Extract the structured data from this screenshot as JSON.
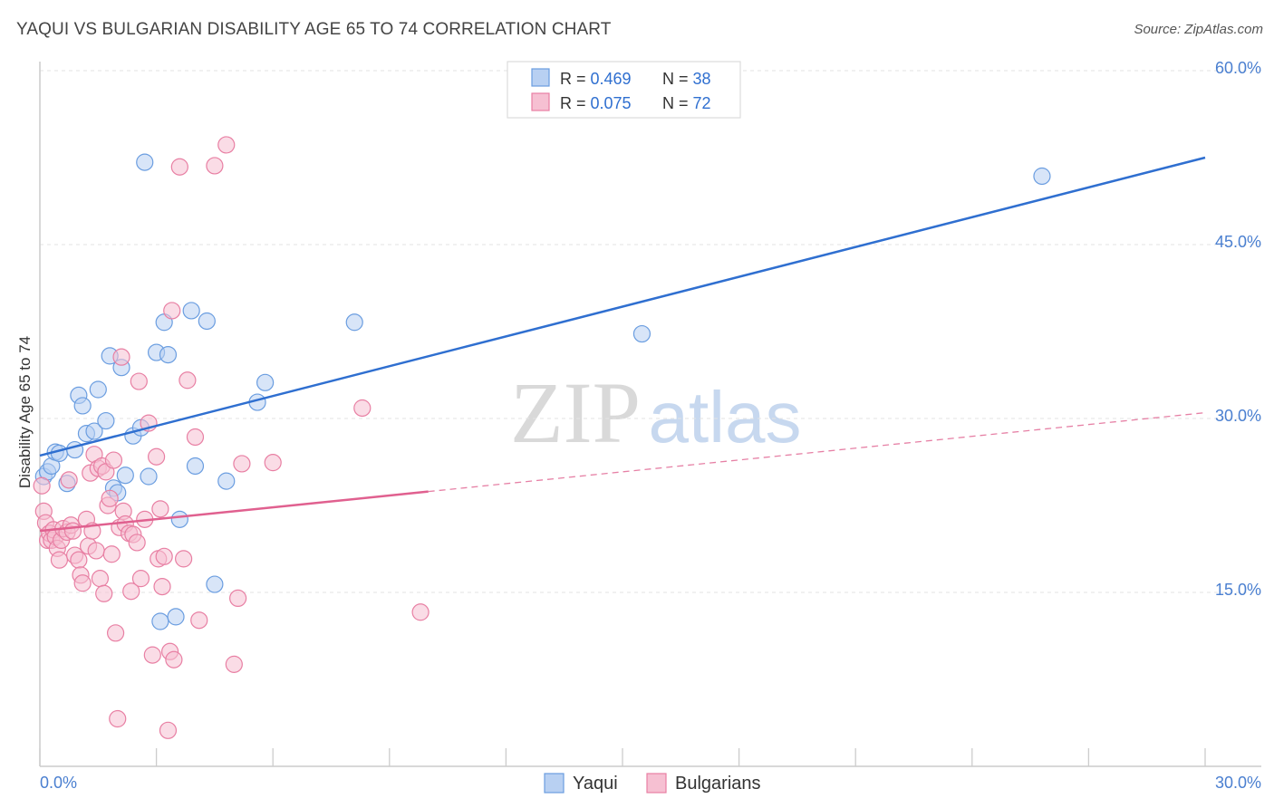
{
  "title": "YAQUI VS BULGARIAN DISABILITY AGE 65 TO 74 CORRELATION CHART",
  "source": "Source: ZipAtlas.com",
  "watermark": {
    "part1": "ZIP",
    "part2": "atlas"
  },
  "chart_data": {
    "type": "scatter",
    "ylabel": "Disability Age 65 to 74",
    "xlabel": "",
    "xlim": [
      0,
      30
    ],
    "ylim": [
      0,
      60
    ],
    "x_tick_labels": [
      "0.0%",
      "30.0%"
    ],
    "y_ticks": [
      15,
      30,
      45,
      60
    ],
    "y_tick_labels": [
      "15.0%",
      "30.0%",
      "45.0%",
      "60.0%"
    ],
    "legend_stats": [
      {
        "r_label": "R = ",
        "r_value": "0.469",
        "n_label": "N = ",
        "n_value": "38"
      },
      {
        "r_label": "R = ",
        "r_value": "0.075",
        "n_label": "N = ",
        "n_value": "72"
      }
    ],
    "series": [
      {
        "name": "Yaqui",
        "color": "#6a9de0",
        "fill": "#b8d0f2",
        "trend": {
          "x": [
            0,
            30
          ],
          "y": [
            26.8,
            52.5
          ],
          "dashed_from": null,
          "line_color": "#2f6fd0"
        },
        "points": [
          [
            0.1,
            25.0
          ],
          [
            0.2,
            25.4
          ],
          [
            0.3,
            25.9
          ],
          [
            0.4,
            27.1
          ],
          [
            0.5,
            27.0
          ],
          [
            0.7,
            24.4
          ],
          [
            0.9,
            27.3
          ],
          [
            1.0,
            32.0
          ],
          [
            1.1,
            31.1
          ],
          [
            1.2,
            28.7
          ],
          [
            1.4,
            28.9
          ],
          [
            1.5,
            32.5
          ],
          [
            1.7,
            29.8
          ],
          [
            1.8,
            35.4
          ],
          [
            1.9,
            24.0
          ],
          [
            2.0,
            23.6
          ],
          [
            2.1,
            34.4
          ],
          [
            2.2,
            25.1
          ],
          [
            2.4,
            28.5
          ],
          [
            2.6,
            29.2
          ],
          [
            2.7,
            52.1
          ],
          [
            2.8,
            25.0
          ],
          [
            3.0,
            35.7
          ],
          [
            3.1,
            12.5
          ],
          [
            3.2,
            38.3
          ],
          [
            3.3,
            35.5
          ],
          [
            3.5,
            12.9
          ],
          [
            3.6,
            21.3
          ],
          [
            3.9,
            39.3
          ],
          [
            4.0,
            25.9
          ],
          [
            4.3,
            38.4
          ],
          [
            4.5,
            15.7
          ],
          [
            4.8,
            24.6
          ],
          [
            5.6,
            31.4
          ],
          [
            5.8,
            33.1
          ],
          [
            8.1,
            38.3
          ],
          [
            15.5,
            37.3
          ],
          [
            25.8,
            50.9
          ]
        ]
      },
      {
        "name": "Bulgarians",
        "color": "#e87fa3",
        "fill": "#f6c0d2",
        "trend": {
          "x": [
            0,
            30
          ],
          "y": [
            20.3,
            30.5
          ],
          "dashed_from": 10,
          "line_color": "#e0608f"
        },
        "points": [
          [
            0.05,
            24.2
          ],
          [
            0.1,
            22.0
          ],
          [
            0.15,
            21.0
          ],
          [
            0.2,
            19.5
          ],
          [
            0.25,
            20.1
          ],
          [
            0.3,
            19.5
          ],
          [
            0.35,
            20.4
          ],
          [
            0.4,
            19.8
          ],
          [
            0.45,
            18.8
          ],
          [
            0.5,
            17.8
          ],
          [
            0.55,
            19.5
          ],
          [
            0.6,
            20.5
          ],
          [
            0.7,
            20.2
          ],
          [
            0.75,
            24.7
          ],
          [
            0.8,
            20.8
          ],
          [
            0.85,
            20.3
          ],
          [
            0.9,
            18.2
          ],
          [
            1.0,
            17.8
          ],
          [
            1.05,
            16.5
          ],
          [
            1.1,
            15.8
          ],
          [
            1.2,
            21.3
          ],
          [
            1.25,
            19.0
          ],
          [
            1.3,
            25.3
          ],
          [
            1.35,
            20.3
          ],
          [
            1.4,
            26.9
          ],
          [
            1.45,
            18.6
          ],
          [
            1.5,
            25.7
          ],
          [
            1.55,
            16.2
          ],
          [
            1.6,
            25.9
          ],
          [
            1.65,
            14.9
          ],
          [
            1.7,
            25.4
          ],
          [
            1.75,
            22.5
          ],
          [
            1.8,
            23.1
          ],
          [
            1.85,
            18.3
          ],
          [
            1.9,
            26.4
          ],
          [
            1.95,
            11.5
          ],
          [
            2.0,
            4.1
          ],
          [
            2.05,
            20.6
          ],
          [
            2.1,
            35.3
          ],
          [
            2.15,
            22.0
          ],
          [
            2.2,
            20.9
          ],
          [
            2.3,
            20.1
          ],
          [
            2.35,
            15.1
          ],
          [
            2.4,
            20.0
          ],
          [
            2.5,
            19.3
          ],
          [
            2.55,
            33.2
          ],
          [
            2.6,
            16.2
          ],
          [
            2.7,
            21.3
          ],
          [
            2.8,
            29.6
          ],
          [
            2.9,
            9.6
          ],
          [
            3.0,
            26.7
          ],
          [
            3.05,
            17.9
          ],
          [
            3.1,
            22.2
          ],
          [
            3.15,
            15.5
          ],
          [
            3.2,
            18.1
          ],
          [
            3.3,
            3.1
          ],
          [
            3.35,
            9.9
          ],
          [
            3.4,
            39.3
          ],
          [
            3.45,
            9.2
          ],
          [
            3.6,
            51.7
          ],
          [
            3.7,
            17.9
          ],
          [
            3.8,
            33.3
          ],
          [
            4.0,
            28.4
          ],
          [
            4.1,
            12.6
          ],
          [
            4.5,
            51.8
          ],
          [
            4.8,
            53.6
          ],
          [
            5.0,
            8.8
          ],
          [
            5.1,
            14.5
          ],
          [
            5.2,
            26.1
          ],
          [
            6.0,
            26.2
          ],
          [
            8.3,
            30.9
          ],
          [
            9.8,
            13.3
          ]
        ]
      }
    ]
  }
}
